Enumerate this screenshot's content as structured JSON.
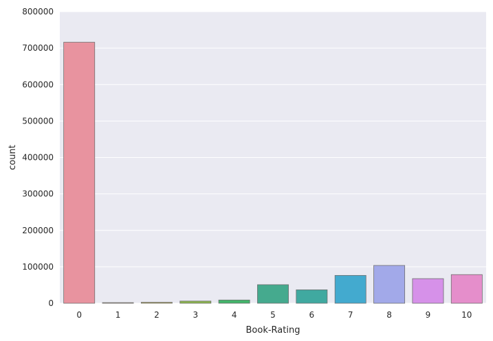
{
  "chart_data": {
    "type": "bar",
    "xlabel": "Book-Rating",
    "ylabel": "count",
    "categories": [
      "0",
      "1",
      "2",
      "3",
      "4",
      "5",
      "6",
      "7",
      "8",
      "9",
      "10"
    ],
    "values": [
      716109,
      1770,
      2759,
      5996,
      8904,
      50974,
      36924,
      76457,
      103736,
      67541,
      78610
    ],
    "colors": [
      "#e8939f",
      "#d2a070",
      "#b6ab5c",
      "#8cb64d",
      "#42b46a",
      "#45aa8e",
      "#40a9a0",
      "#43aacf",
      "#a2a9e9",
      "#d691e9",
      "#e58ecb"
    ],
    "ylim": [
      0,
      800000
    ],
    "yticks": [
      0,
      100000,
      200000,
      300000,
      400000,
      500000,
      600000,
      700000,
      800000
    ],
    "grid": true,
    "background": "#eaeaf2"
  }
}
